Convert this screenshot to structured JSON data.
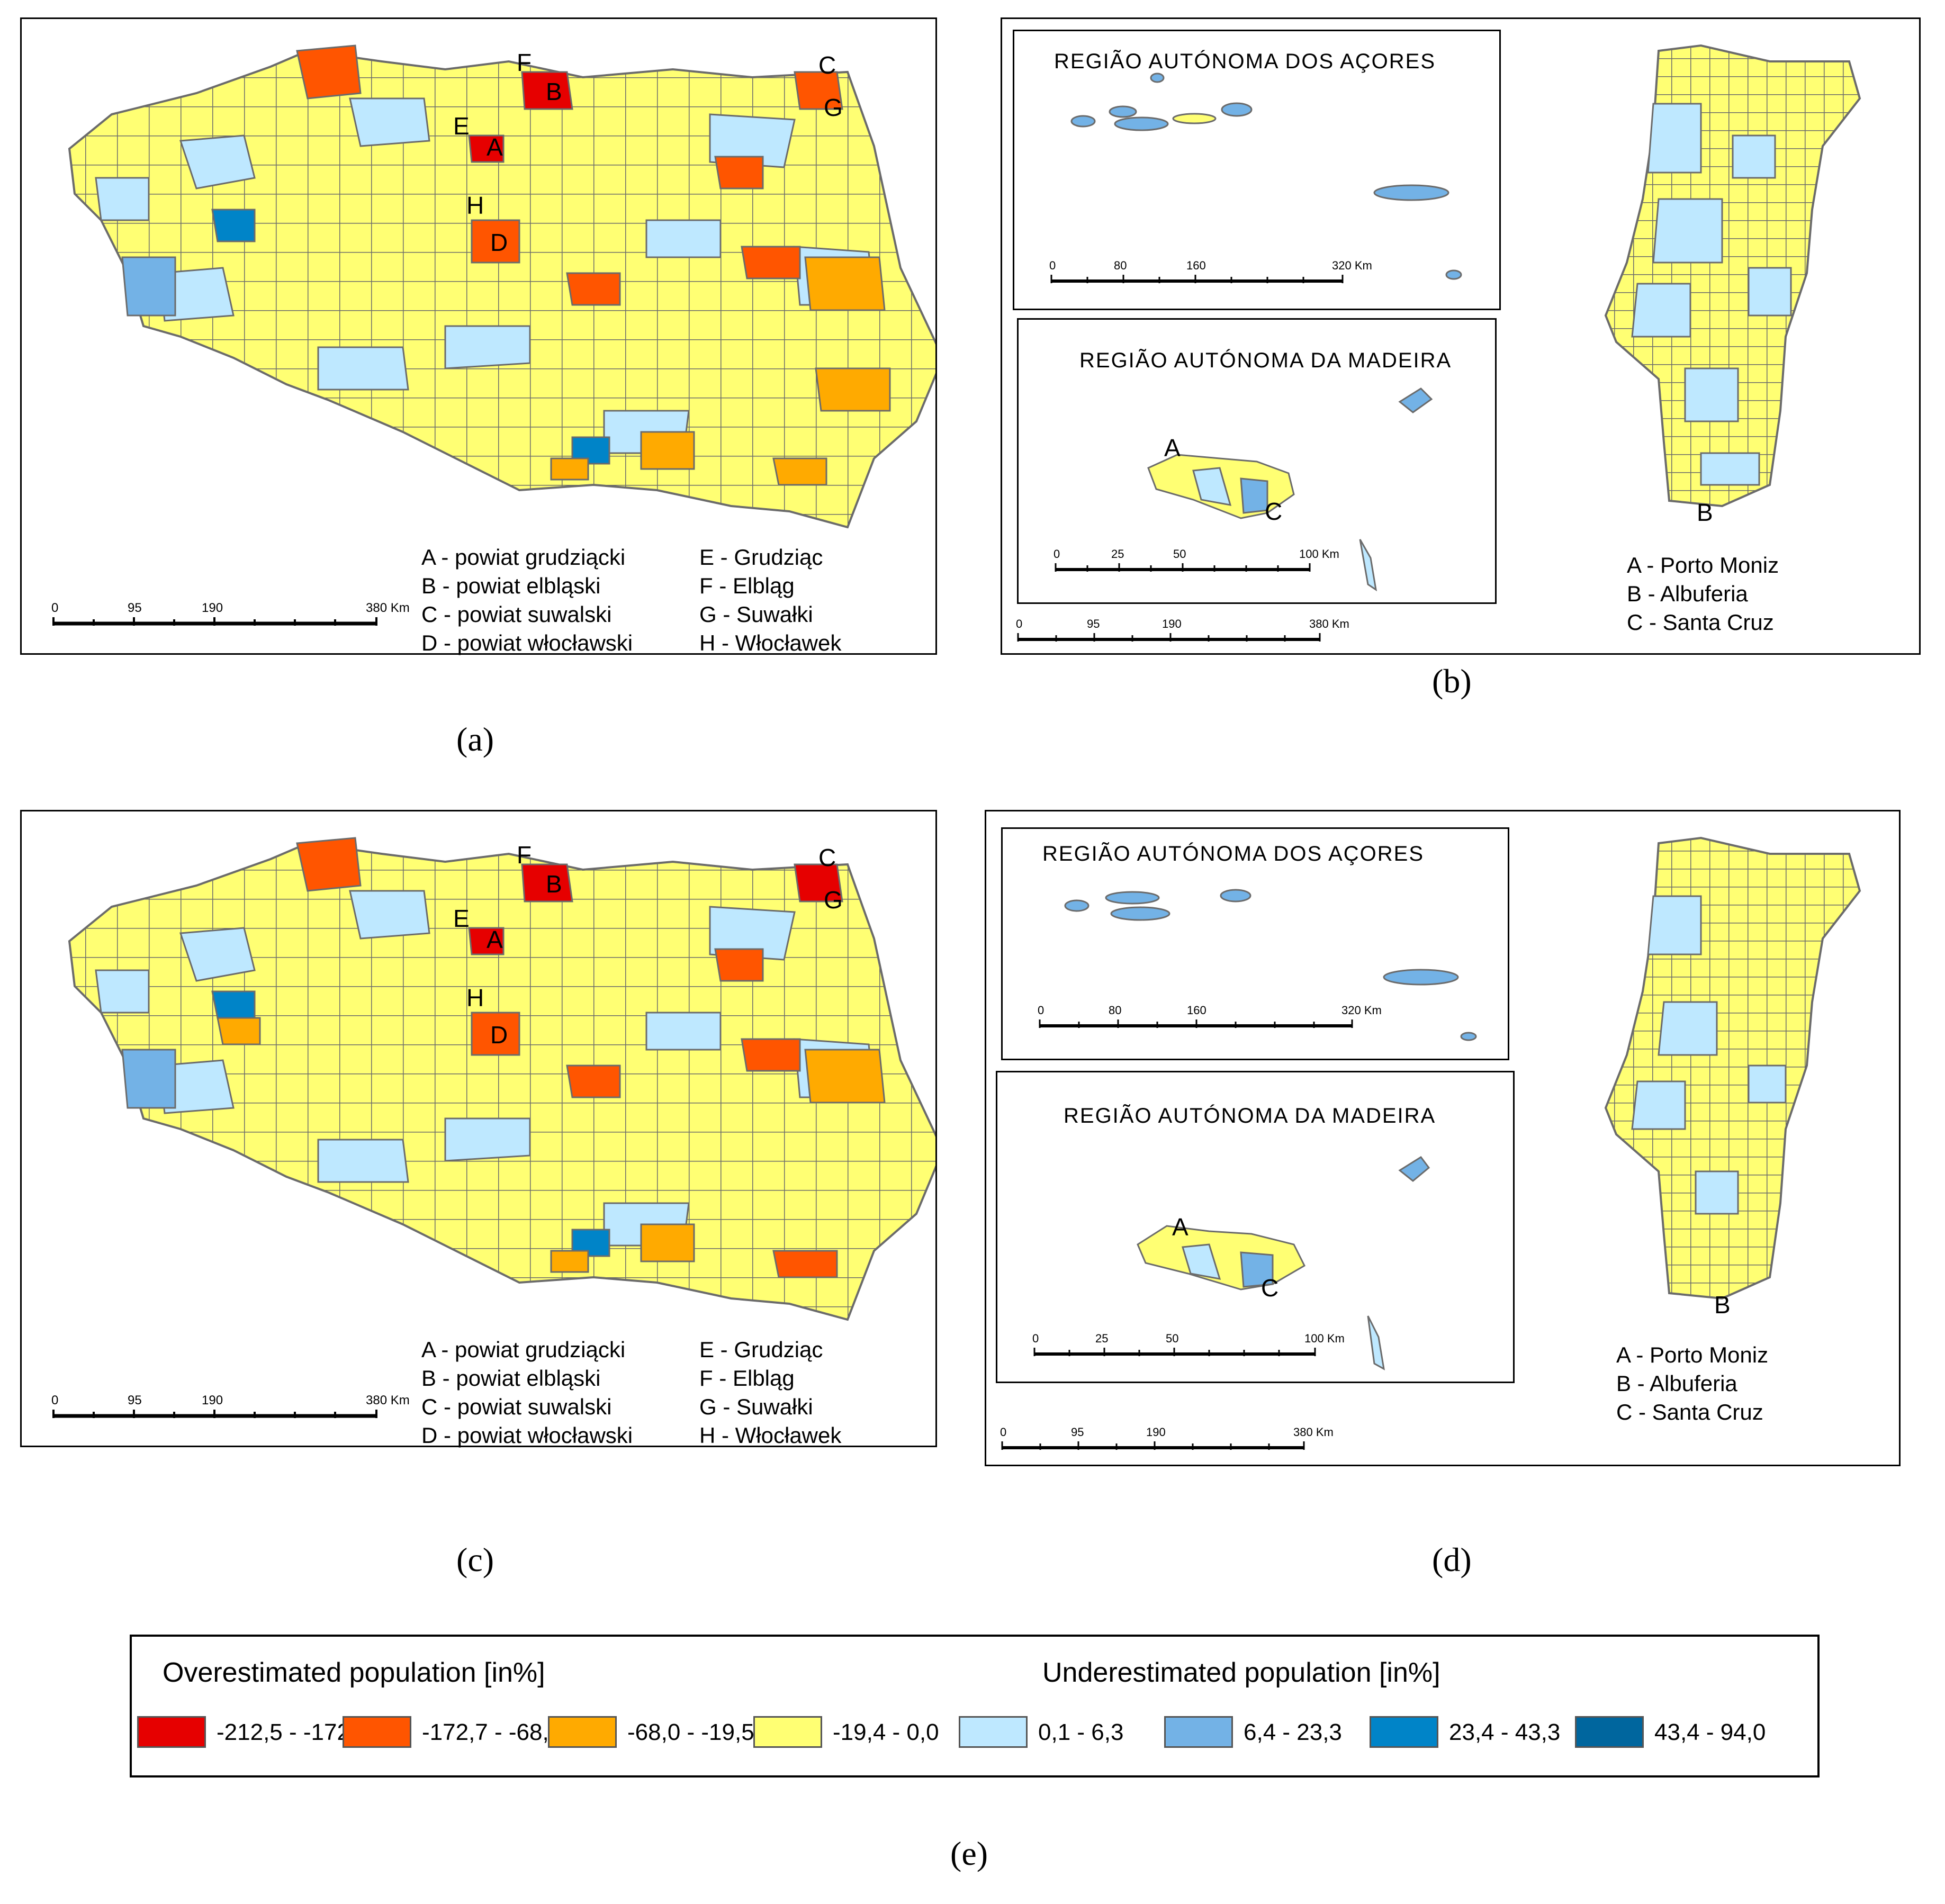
{
  "panels": {
    "a": {
      "label": "(a)"
    },
    "b": {
      "label": "(b)"
    },
    "c": {
      "label": "(c)"
    },
    "d": {
      "label": "(d)"
    },
    "e": {
      "label": "(e)"
    }
  },
  "poland": {
    "map_letters": [
      "A",
      "B",
      "C",
      "D",
      "E",
      "F",
      "G",
      "H"
    ],
    "key_left": [
      "A - powiat grudziącki",
      "B - powiat elbląski",
      "C - powiat suwalski",
      "D - powiat włocławski"
    ],
    "key_right": [
      "E - Grudziąc",
      "F - Elbląg",
      "G - Suwałki",
      "H - Włocławek"
    ],
    "scale": {
      "ticks": [
        "0",
        "95",
        "190",
        "380 Km"
      ]
    }
  },
  "portugal": {
    "azores_title": "REGIÃO AUTÓNOMA DOS AÇORES",
    "madeira_title": "REGIÃO AUTÓNOMA DA MADEIRA",
    "map_letters": [
      "A",
      "B",
      "C"
    ],
    "key": [
      "A - Porto Moniz",
      "B - Albuferia",
      "C - Santa Cruz"
    ],
    "azores_scale_b": {
      "ticks": [
        "0",
        "80",
        "160",
        "320 Km"
      ]
    },
    "azores_scale_d": {
      "ticks": [
        "0",
        "80",
        "160",
        "320 Km"
      ]
    },
    "madeira_scale": {
      "ticks": [
        "0",
        "25",
        "50",
        "100 Km"
      ]
    },
    "main_scale": {
      "ticks": [
        "0",
        "95",
        "190",
        "380 Km"
      ]
    }
  },
  "legend": {
    "over_title": "Overestimated population [in%]",
    "under_title": "Underestimated population [in%]",
    "classes": [
      {
        "range": "-212,5 - -172,8",
        "color": "#e60000"
      },
      {
        "range": "-172,7 - -68,1",
        "color": "#ff5500"
      },
      {
        "range": "-68,0 - -19,5",
        "color": "#ffaa00"
      },
      {
        "range": "-19,4 - 0,0",
        "color": "#ffff73"
      },
      {
        "range": "0,1 - 6,3",
        "color": "#bee8ff"
      },
      {
        "range": "6,4 - 23,3",
        "color": "#73b2e6"
      },
      {
        "range": "23,4 - 43,3",
        "color": "#0084c8"
      },
      {
        "range": "43,4 - 94,0",
        "color": "#00669e"
      }
    ]
  }
}
